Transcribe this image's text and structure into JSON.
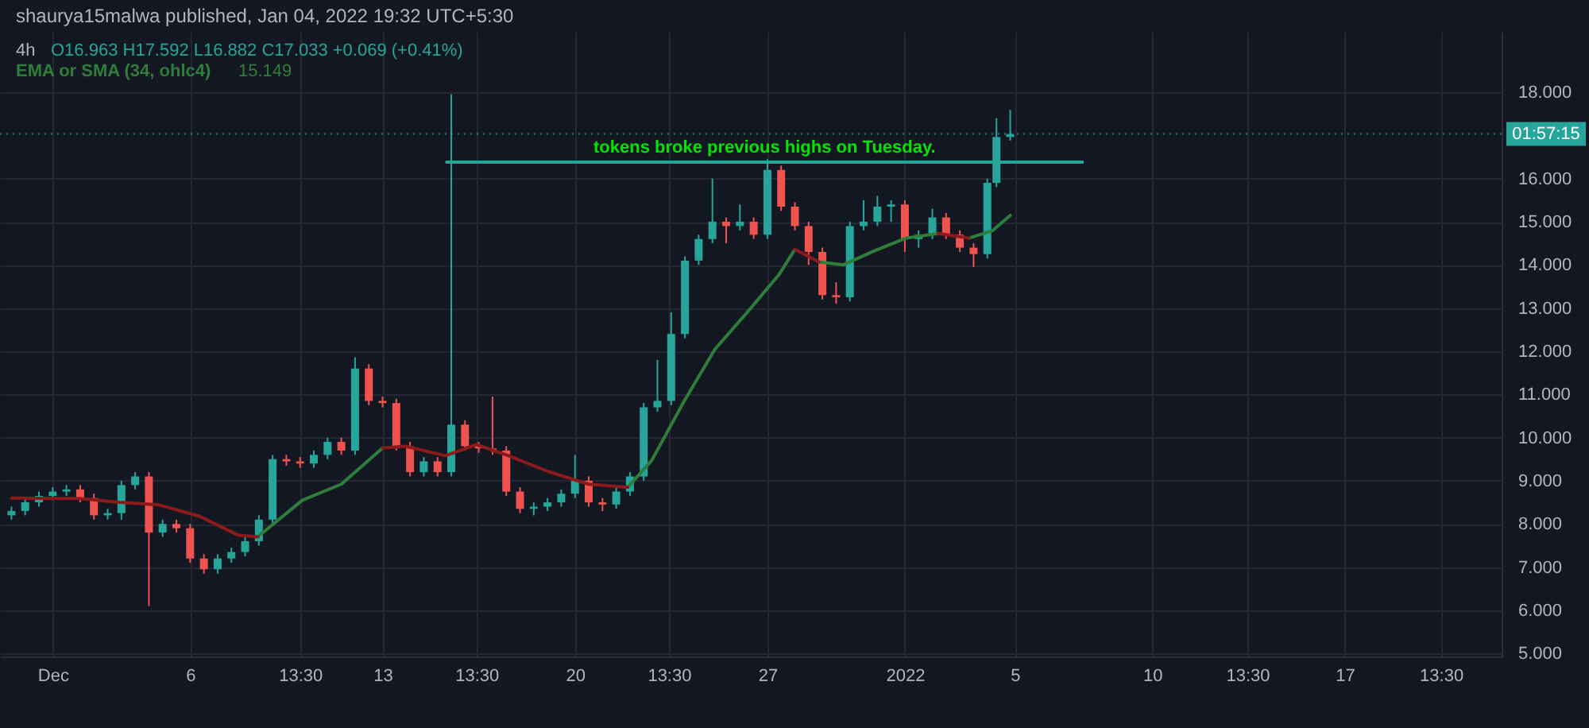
{
  "chart_data": {
    "type": "candlestick",
    "title": "4h",
    "subtitle": "O16.963 H17.592 L16.882 C17.033 +0.069 (+0.41%)",
    "annotations": [
      "shaurya15malwa published, Jan 04, 2022 19:32 UTC+5:30",
      "tokens broke previous highs on Tuesday.",
      "01:57:15",
      "15.149"
    ],
    "x": [
      "2021-11-29T12:00",
      "2021-11-30T00:00",
      "2021-11-30T12:00",
      "2021-12-01T00:00",
      "2021-12-01T12:00",
      "2021-12-02T00:00",
      "2021-12-02T12:00",
      "2021-12-03T00:00",
      "2021-12-03T12:00",
      "2021-12-04T00:00",
      "2021-12-04T12:00",
      "2021-12-05T00:00",
      "2021-12-05T12:00",
      "2021-12-06T00:00",
      "2021-12-06T12:00",
      "2021-12-07T00:00",
      "2021-12-07T12:00",
      "2021-12-08T00:00",
      "2021-12-08T12:00",
      "2021-12-09T00:00",
      "2021-12-09T12:00",
      "2021-12-10T00:00",
      "2021-12-10T12:00",
      "2021-12-11T00:00",
      "2021-12-11T12:00",
      "2021-12-12T00:00",
      "2021-12-12T12:00",
      "2021-12-13T00:00",
      "2021-12-13T12:00",
      "2021-12-14T00:00",
      "2021-12-14T12:00",
      "2021-12-15T00:00",
      "2021-12-15T12:00",
      "2021-12-16T00:00",
      "2021-12-16T12:00",
      "2021-12-17T00:00",
      "2021-12-17T12:00",
      "2021-12-18T00:00",
      "2021-12-18T12:00",
      "2021-12-19T00:00",
      "2021-12-19T12:00",
      "2021-12-20T00:00",
      "2021-12-20T12:00",
      "2021-12-21T00:00",
      "2021-12-21T12:00",
      "2021-12-22T00:00",
      "2021-12-22T12:00",
      "2021-12-23T00:00",
      "2021-12-23T12:00",
      "2021-12-24T00:00",
      "2021-12-24T12:00",
      "2021-12-25T00:00",
      "2021-12-25T12:00",
      "2021-12-26T00:00",
      "2021-12-26T12:00",
      "2021-12-27T00:00",
      "2021-12-27T12:00",
      "2021-12-28T00:00",
      "2021-12-28T12:00",
      "2021-12-29T00:00",
      "2021-12-29T12:00",
      "2021-12-30T00:00",
      "2021-12-30T12:00",
      "2021-12-31T00:00",
      "2021-12-31T12:00",
      "2022-01-01T00:00",
      "2022-01-01T12:00",
      "2022-01-02T00:00",
      "2022-01-02T12:00",
      "2022-01-03T00:00",
      "2022-01-03T12:00",
      "2022-01-04T00:00",
      "2022-01-04T08:00",
      "2022-01-04T20:00"
    ],
    "ohlc": [
      [
        8.2,
        8.4,
        8.1,
        8.3
      ],
      [
        8.3,
        8.6,
        8.2,
        8.5
      ],
      [
        8.5,
        8.75,
        8.4,
        8.65
      ],
      [
        8.65,
        8.85,
        8.55,
        8.75
      ],
      [
        8.75,
        8.9,
        8.65,
        8.8
      ],
      [
        8.8,
        8.9,
        8.5,
        8.6
      ],
      [
        8.6,
        8.7,
        8.1,
        8.2
      ],
      [
        8.2,
        8.35,
        8.1,
        8.25
      ],
      [
        8.25,
        9.0,
        8.1,
        8.9
      ],
      [
        8.9,
        9.2,
        8.8,
        9.1
      ],
      [
        9.1,
        9.2,
        6.1,
        7.8
      ],
      [
        7.8,
        8.1,
        7.7,
        8.0
      ],
      [
        8.0,
        8.1,
        7.8,
        7.9
      ],
      [
        7.9,
        8.0,
        7.1,
        7.2
      ],
      [
        7.2,
        7.3,
        6.85,
        6.95
      ],
      [
        6.95,
        7.3,
        6.85,
        7.2
      ],
      [
        7.2,
        7.45,
        7.1,
        7.35
      ],
      [
        7.35,
        7.7,
        7.25,
        7.6
      ],
      [
        7.6,
        8.2,
        7.5,
        8.1
      ],
      [
        8.1,
        9.6,
        8.0,
        9.5
      ],
      [
        9.5,
        9.6,
        9.35,
        9.45
      ],
      [
        9.45,
        9.55,
        9.3,
        9.4
      ],
      [
        9.4,
        9.7,
        9.3,
        9.6
      ],
      [
        9.6,
        10.0,
        9.5,
        9.9
      ],
      [
        9.9,
        10.0,
        9.6,
        9.7
      ],
      [
        9.7,
        11.86,
        9.6,
        11.6
      ],
      [
        11.6,
        11.7,
        10.75,
        10.85
      ],
      [
        10.85,
        10.95,
        10.7,
        10.8
      ],
      [
        10.8,
        10.9,
        9.7,
        9.8
      ],
      [
        9.8,
        9.9,
        9.1,
        9.2
      ],
      [
        9.2,
        9.55,
        9.1,
        9.45
      ],
      [
        9.45,
        9.55,
        9.1,
        9.2
      ],
      [
        9.2,
        17.95,
        9.1,
        10.3
      ],
      [
        10.3,
        10.4,
        9.7,
        9.8
      ],
      [
        9.8,
        9.9,
        9.65,
        9.75
      ],
      [
        9.75,
        10.95,
        9.6,
        9.7
      ],
      [
        9.7,
        9.8,
        8.65,
        8.75
      ],
      [
        8.75,
        8.85,
        8.25,
        8.35
      ],
      [
        8.35,
        8.5,
        8.2,
        8.4
      ],
      [
        8.4,
        8.6,
        8.3,
        8.5
      ],
      [
        8.5,
        8.8,
        8.4,
        8.7
      ],
      [
        8.7,
        9.6,
        8.6,
        9.0
      ],
      [
        9.0,
        9.1,
        8.4,
        8.5
      ],
      [
        8.5,
        8.6,
        8.3,
        8.45
      ],
      [
        8.45,
        8.85,
        8.35,
        8.75
      ],
      [
        8.75,
        9.2,
        8.65,
        9.1
      ],
      [
        9.1,
        10.8,
        9.0,
        10.7
      ],
      [
        10.7,
        11.8,
        10.6,
        10.85
      ],
      [
        10.85,
        12.9,
        10.75,
        12.4
      ],
      [
        12.4,
        14.2,
        12.3,
        14.1
      ],
      [
        14.1,
        14.7,
        14.0,
        14.6
      ],
      [
        14.6,
        16.0,
        14.5,
        15.0
      ],
      [
        15.0,
        15.1,
        14.5,
        14.9
      ],
      [
        14.9,
        15.4,
        14.8,
        15.0
      ],
      [
        15.0,
        15.1,
        14.6,
        14.7
      ],
      [
        14.7,
        16.45,
        14.6,
        16.2
      ],
      [
        16.2,
        16.3,
        15.25,
        15.35
      ],
      [
        15.35,
        15.45,
        14.8,
        14.9
      ],
      [
        14.9,
        15.0,
        14.0,
        14.3
      ],
      [
        14.3,
        14.4,
        13.2,
        13.3
      ],
      [
        13.3,
        13.6,
        13.1,
        13.25
      ],
      [
        13.25,
        15.0,
        13.15,
        14.9
      ],
      [
        14.9,
        15.5,
        14.8,
        15.0
      ],
      [
        15.0,
        15.6,
        14.9,
        15.35
      ],
      [
        15.35,
        15.5,
        15.0,
        15.4
      ],
      [
        15.4,
        15.5,
        14.3,
        14.6
      ],
      [
        14.6,
        14.8,
        14.4,
        14.7
      ],
      [
        14.7,
        15.3,
        14.6,
        15.1
      ],
      [
        15.1,
        15.2,
        14.6,
        14.7
      ],
      [
        14.7,
        14.8,
        14.3,
        14.4
      ],
      [
        14.4,
        14.5,
        13.95,
        14.25
      ],
      [
        14.25,
        16.0,
        14.15,
        15.9
      ],
      [
        15.9,
        17.4,
        15.8,
        16.963
      ],
      [
        16.963,
        17.592,
        16.882,
        17.033
      ]
    ],
    "colors": [
      "#26a69a",
      "#26a69a",
      "#26a69a",
      "#26a69a",
      "#26a69a",
      "#ef5350",
      "#ef5350",
      "#26a69a",
      "#26a69a",
      "#26a69a",
      "#ef5350",
      "#26a69a",
      "#ef5350",
      "#ef5350",
      "#ef5350",
      "#26a69a",
      "#26a69a",
      "#26a69a",
      "#26a69a",
      "#26a69a",
      "#ef5350",
      "#ef5350",
      "#26a69a",
      "#26a69a",
      "#ef5350",
      "#26a69a",
      "#ef5350",
      "#ef5350",
      "#ef5350",
      "#ef5350",
      "#26a69a",
      "#ef5350",
      "#26a69a",
      "#ef5350",
      "#ef5350",
      "#ef5350",
      "#ef5350",
      "#ef5350",
      "#26a69a",
      "#26a69a",
      "#26a69a",
      "#26a69a",
      "#ef5350",
      "#ef5350",
      "#26a69a",
      "#26a69a",
      "#26a69a",
      "#26a69a",
      "#26a69a",
      "#26a69a",
      "#26a69a",
      "#26a69a",
      "#ef5350",
      "#26a69a",
      "#ef5350",
      "#26a69a",
      "#ef5350",
      "#ef5350",
      "#ef5350",
      "#ef5350",
      "#ef5350",
      "#26a69a",
      "#26a69a",
      "#26a69a",
      "#26a69a",
      "#ef5350",
      "#26a69a",
      "#26a69a",
      "#ef5350",
      "#ef5350",
      "#ef5350",
      "#26a69a",
      "#26a69a",
      "#26a69a"
    ],
    "series": [
      {
        "name": "EMA or SMA (34, ohlc4)",
        "type": "line",
        "color": "#2e7d3a",
        "x": [
          "2021-12-08T11:00",
          "2021-12-10T02:00",
          "2021-12-11T12:00",
          "2021-12-13T00:00",
          null,
          "2021-12-21T22:00",
          "2021-12-22T19:00",
          "2021-12-23T23:00",
          "2021-12-25T02:00",
          "2021-12-26T06:00",
          "2021-12-27T10:00",
          "2021-12-28T00:00",
          null,
          "2021-12-28T21:00",
          "2021-12-29T18:00",
          "2021-12-30T21:00",
          "2022-01-01T01:00",
          "2022-01-02T05:00",
          null,
          "2022-01-03T08:00",
          "2022-01-04T05:00",
          "2022-01-04T20:00"
        ],
        "values": [
          7.7,
          8.55,
          8.92,
          9.76,
          null,
          8.85,
          9.47,
          10.83,
          12.04,
          12.89,
          13.77,
          14.36,
          null,
          14.07,
          14.0,
          14.32,
          14.62,
          14.73,
          null,
          14.62,
          14.8,
          15.149
        ]
      },
      {
        "type": "line",
        "color": "#8b1a1a",
        "x": [
          "2021-11-29T12:00",
          "2021-12-02T00:00",
          "2021-12-03T10:00",
          "2021-12-04T21:00",
          "2021-12-06T08:00",
          "2021-12-07T18:00",
          "2021-12-08T11:00",
          null,
          "2021-12-13T00:00",
          "2021-12-13T20:00",
          "2021-12-15T07:00",
          "2021-12-16T10:00",
          "2021-12-17T14:00",
          "2021-12-19T01:00",
          "2021-12-20T12:00",
          "2021-12-21T22:00",
          null,
          "2021-12-28T00:00",
          "2021-12-28T21:00",
          null,
          "2022-01-02T05:00",
          "2022-01-03T08:00"
        ],
        "values": [
          8.6,
          8.59,
          8.5,
          8.44,
          8.18,
          7.74,
          7.7,
          null,
          9.76,
          9.8,
          9.58,
          9.84,
          9.58,
          9.21,
          8.92,
          8.85,
          null,
          14.36,
          14.07,
          null,
          14.73,
          14.62
        ]
      },
      {
        "type": "line",
        "color": "#26a69a",
        "x": [
          "2021-12-15T08:00",
          "2022-01-07T11:00"
        ],
        "values": [
          16.38,
          16.38
        ]
      }
    ],
    "ref_lines": [
      {
        "axis": "y",
        "value": 17.033,
        "color": "#26a69a",
        "line_style": "dotted"
      }
    ],
    "xlim": [
      "2021-11-29T02:00",
      "2022-01-22T17:00"
    ],
    "ylim": [
      4.93,
      19.4
    ],
    "xticks": [
      {
        "value": "2021-12-01",
        "label": "Dec"
      },
      {
        "value": "2021-12-06",
        "label": "6"
      },
      {
        "value": "2021-12-10T00:00",
        "label": "13:30"
      },
      {
        "value": "2021-12-13",
        "label": "13"
      },
      {
        "value": "2021-12-16T10:00",
        "label": "13:30"
      },
      {
        "value": "2021-12-20",
        "label": "20"
      },
      {
        "value": "2021-12-23T10:00",
        "label": "13:30"
      },
      {
        "value": "2021-12-27",
        "label": "27"
      },
      {
        "value": "2022-01-01",
        "label": "2022"
      },
      {
        "value": "2022-01-05",
        "label": "5"
      },
      {
        "value": "2022-01-10",
        "label": "10"
      },
      {
        "value": "2022-01-13T11:00",
        "label": "13:30"
      },
      {
        "value": "2022-01-17",
        "label": "17"
      },
      {
        "value": "2022-01-20T12:00",
        "label": "13:30"
      }
    ],
    "yticks": [
      {
        "value": 5,
        "label": "5.000"
      },
      {
        "value": 6,
        "label": "6.000"
      },
      {
        "value": 7,
        "label": "7.000"
      },
      {
        "value": 8,
        "label": "8.000"
      },
      {
        "value": 9,
        "label": "9.000"
      },
      {
        "value": 10,
        "label": "10.000"
      },
      {
        "value": 11,
        "label": "11.000"
      },
      {
        "value": 12,
        "label": "12.000"
      },
      {
        "value": 13,
        "label": "13.000"
      },
      {
        "value": 14,
        "label": "14.000"
      },
      {
        "value": 15,
        "label": "15.000"
      },
      {
        "value": 16,
        "label": "16.000"
      },
      {
        "value": 18,
        "label": "18.000"
      }
    ],
    "grid": true
  }
}
